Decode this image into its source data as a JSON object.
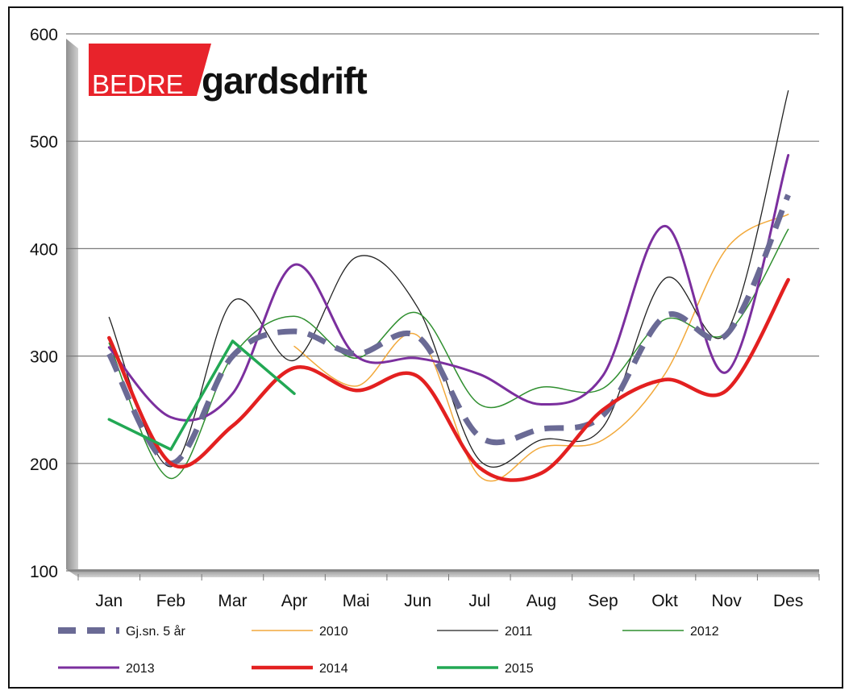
{
  "logo": {
    "part1": "BEDRE",
    "part2": "gardsdrift",
    "red": "#e8232b"
  },
  "chart_data": {
    "type": "line",
    "title": "",
    "xlabel": "",
    "ylabel": "",
    "categories": [
      "Jan",
      "Feb",
      "Mar",
      "Apr",
      "Mai",
      "Jun",
      "Jul",
      "Aug",
      "Sep",
      "Okt",
      "Nov",
      "Des"
    ],
    "yticks": [
      "100",
      "200",
      "300",
      "400",
      "500",
      "600"
    ],
    "ylim": [
      100,
      600
    ],
    "grid": true,
    "legend_position": "bottom",
    "series": [
      {
        "name": "Gj.sn. 5 år",
        "color": "#6a6a95",
        "dashed": true,
        "width": 7,
        "values": [
          302,
          200,
          300,
          323,
          302,
          318,
          225,
          232,
          245,
          337,
          320,
          450
        ]
      },
      {
        "name": "2010",
        "color": "#f2a93b",
        "dashed": false,
        "width": 1.5,
        "values": [
          null,
          null,
          null,
          309,
          272,
          319,
          188,
          215,
          222,
          283,
          400,
          432
        ]
      },
      {
        "name": "2011",
        "color": "#222222",
        "dashed": false,
        "width": 1.3,
        "values": [
          336,
          197,
          351,
          296,
          392,
          345,
          203,
          222,
          234,
          372,
          322,
          547
        ]
      },
      {
        "name": "2012",
        "color": "#2f8f2f",
        "dashed": false,
        "width": 1.5,
        "values": [
          312,
          186,
          300,
          337,
          298,
          340,
          255,
          271,
          270,
          334,
          321,
          418
        ]
      },
      {
        "name": "2013",
        "color": "#7b2f9e",
        "dashed": false,
        "width": 3,
        "values": [
          308,
          243,
          265,
          385,
          300,
          298,
          283,
          255,
          282,
          421,
          285,
          487
        ]
      },
      {
        "name": "2014",
        "color": "#e32020",
        "dashed": false,
        "width": 4.5,
        "values": [
          317,
          200,
          235,
          289,
          268,
          281,
          196,
          191,
          250,
          278,
          268,
          371
        ]
      },
      {
        "name": "2015",
        "color": "#22a854",
        "dashed": false,
        "width": 3.5,
        "values": [
          241,
          213,
          314,
          265,
          null,
          null,
          null,
          null,
          null,
          null,
          null,
          null
        ]
      }
    ]
  }
}
